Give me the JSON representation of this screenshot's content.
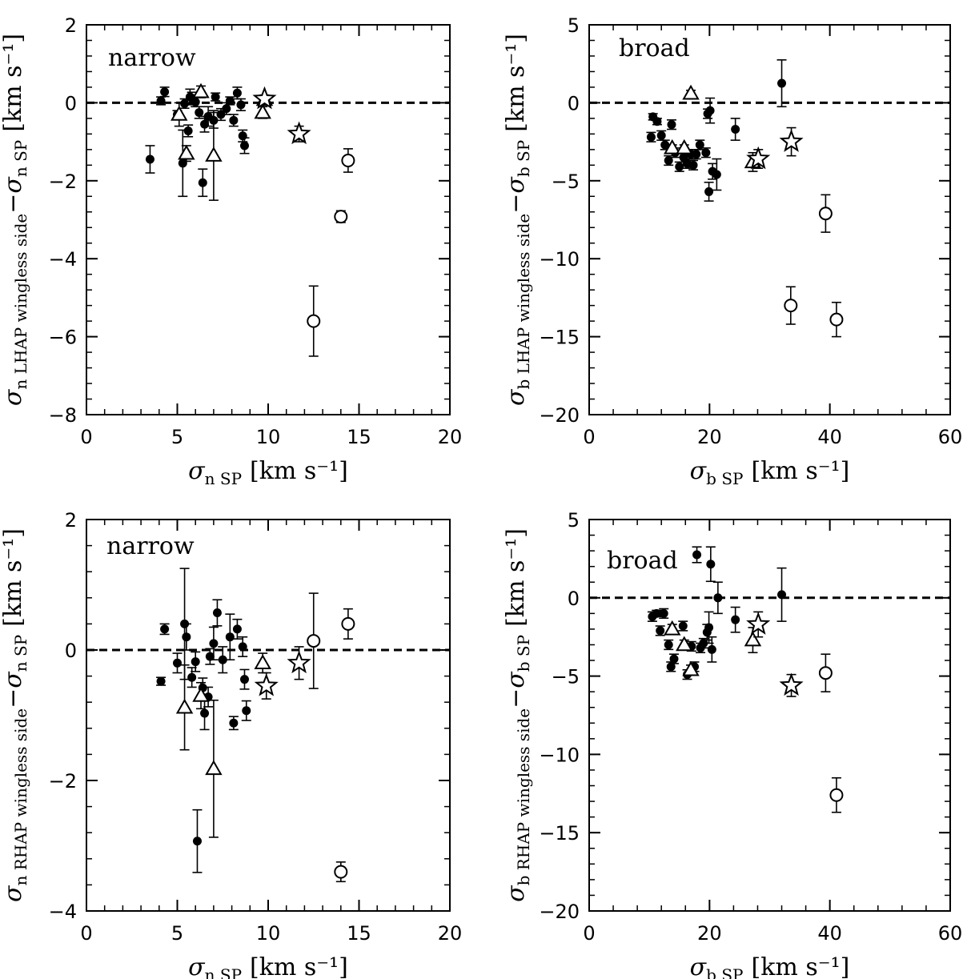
{
  "chart_data": [
    {
      "type": "scatter",
      "panel": "top-left",
      "label": "narrow",
      "xlabel": {
        "main": "σ",
        "sub": "n SP",
        "unit": "[km s⁻¹]"
      },
      "ylabel": {
        "main": "σ",
        "sub": "n LHAP wingless side",
        "minus": "−σ",
        "sub2": "n SP",
        "unit": "[km s⁻¹]"
      },
      "xlim": [
        0,
        20
      ],
      "ylim": [
        -8,
        2
      ],
      "xticks": [
        0,
        5,
        10,
        15,
        20
      ],
      "xtick_labels": [
        "0",
        "5",
        "10",
        "15",
        "20"
      ],
      "yticks": [
        -8,
        -6,
        -4,
        -2,
        0,
        2
      ],
      "ytick_labels": [
        "−8",
        "−6",
        "−4",
        "−2",
        "0",
        "2"
      ],
      "reference_line": 0,
      "series": [
        {
          "name": "filled circles",
          "marker": "filled-circle",
          "points": [
            {
              "x": 3.5,
              "y": -1.45,
              "err": 0.35
            },
            {
              "x": 4.1,
              "y": 0.05,
              "err": 0.1
            },
            {
              "x": 4.3,
              "y": 0.28,
              "err": 0.12
            },
            {
              "x": 5.0,
              "y": -0.3,
              "err": 0.1
            },
            {
              "x": 5.3,
              "y": -1.55,
              "err": 0.85
            },
            {
              "x": 5.4,
              "y": -0.02,
              "err": 0.12
            },
            {
              "x": 5.6,
              "y": -0.72,
              "err": 0.15
            },
            {
              "x": 5.7,
              "y": 0.15,
              "err": 0.2
            },
            {
              "x": 5.8,
              "y": 0.12,
              "err": 0.15
            },
            {
              "x": 6.0,
              "y": 0.02,
              "err": 0.12
            },
            {
              "x": 6.2,
              "y": -0.25,
              "err": 0.15
            },
            {
              "x": 6.4,
              "y": -2.05,
              "err": 0.35
            },
            {
              "x": 6.5,
              "y": -0.55,
              "err": 0.2
            },
            {
              "x": 6.7,
              "y": -0.35,
              "err": 0.25
            },
            {
              "x": 7.0,
              "y": -0.45,
              "err": 0.2
            },
            {
              "x": 7.1,
              "y": 0.15,
              "err": 0.1
            },
            {
              "x": 7.4,
              "y": -0.3,
              "err": 0.15
            },
            {
              "x": 7.7,
              "y": -0.15,
              "err": 0.15
            },
            {
              "x": 7.9,
              "y": 0.05,
              "err": 0.1
            },
            {
              "x": 8.1,
              "y": -0.45,
              "err": 0.15
            },
            {
              "x": 8.3,
              "y": 0.25,
              "err": 0.15
            },
            {
              "x": 8.5,
              "y": -0.05,
              "err": 0.15
            },
            {
              "x": 8.6,
              "y": -0.85,
              "err": 0.15
            },
            {
              "x": 8.7,
              "y": -1.1,
              "err": 0.2
            }
          ]
        },
        {
          "name": "open triangles",
          "marker": "open-triangle",
          "points": [
            {
              "x": 5.1,
              "y": -0.3,
              "err": 0.3
            },
            {
              "x": 5.5,
              "y": -1.3,
              "err": 0.2
            },
            {
              "x": 6.3,
              "y": 0.28,
              "err": 0.15
            },
            {
              "x": 7.0,
              "y": -1.35,
              "err": 1.15
            },
            {
              "x": 9.7,
              "y": -0.25,
              "err": 0.15
            },
            {
              "x": 9.8,
              "y": 0.08,
              "err": 0.1
            }
          ]
        },
        {
          "name": "open stars",
          "marker": "open-star",
          "points": [
            {
              "x": 9.8,
              "y": 0.1,
              "err": 0.1
            },
            {
              "x": 11.7,
              "y": -0.8,
              "err": 0.2
            }
          ]
        },
        {
          "name": "open circles",
          "marker": "open-circle",
          "points": [
            {
              "x": 12.5,
              "y": -5.6,
              "err": 0.9
            },
            {
              "x": 14.0,
              "y": -2.92,
              "err": 0.15
            },
            {
              "x": 14.4,
              "y": -1.48,
              "err": 0.3
            }
          ]
        }
      ]
    },
    {
      "type": "scatter",
      "panel": "top-right",
      "label": "broad",
      "xlabel": {
        "main": "σ",
        "sub": "b SP",
        "unit": "[km s⁻¹]"
      },
      "ylabel": {
        "main": "σ",
        "sub": "b LHAP wingless side",
        "minus": "−σ",
        "sub2": "b SP",
        "unit": "[km s⁻¹]"
      },
      "xlim": [
        0,
        60
      ],
      "ylim": [
        -20,
        5
      ],
      "xticks": [
        0,
        20,
        40,
        60
      ],
      "xtick_labels": [
        "0",
        "20",
        "40",
        "60"
      ],
      "yticks": [
        -20,
        -15,
        -10,
        -5,
        0,
        5
      ],
      "ytick_labels": [
        "−20",
        "−15",
        "−10",
        "−5",
        "0",
        "5"
      ],
      "reference_line": 0,
      "series": [
        {
          "name": "filled circles",
          "marker": "filled-circle",
          "points": [
            {
              "x": 10.3,
              "y": -2.2,
              "err": 0.3
            },
            {
              "x": 10.6,
              "y": -0.9,
              "err": 0.2
            },
            {
              "x": 11.3,
              "y": -1.2,
              "err": 0.2
            },
            {
              "x": 12.0,
              "y": -2.1,
              "err": 0.3
            },
            {
              "x": 12.6,
              "y": -2.7,
              "err": 0.3
            },
            {
              "x": 13.2,
              "y": -3.7,
              "err": 0.3
            },
            {
              "x": 13.7,
              "y": -1.4,
              "err": 0.3
            },
            {
              "x": 14.3,
              "y": -3.2,
              "err": 0.3
            },
            {
              "x": 15.0,
              "y": -4.1,
              "err": 0.3
            },
            {
              "x": 15.7,
              "y": -3.5,
              "err": 0.3
            },
            {
              "x": 16.3,
              "y": -3.9,
              "err": 0.3
            },
            {
              "x": 16.9,
              "y": -3.3,
              "err": 0.3
            },
            {
              "x": 17.3,
              "y": -4.0,
              "err": 0.3
            },
            {
              "x": 17.8,
              "y": -3.3,
              "err": 0.3
            },
            {
              "x": 18.4,
              "y": -2.7,
              "err": 0.3
            },
            {
              "x": 19.4,
              "y": -3.2,
              "err": 0.3
            },
            {
              "x": 19.7,
              "y": -0.7,
              "err": 0.3
            },
            {
              "x": 19.9,
              "y": -5.7,
              "err": 0.6
            },
            {
              "x": 20.1,
              "y": -0.5,
              "err": 0.8
            },
            {
              "x": 20.5,
              "y": -4.4,
              "err": 0.5
            },
            {
              "x": 21.2,
              "y": -4.6,
              "err": 1.0
            },
            {
              "x": 24.3,
              "y": -1.7,
              "err": 0.7
            },
            {
              "x": 32.0,
              "y": 1.25,
              "err": 1.5
            }
          ]
        },
        {
          "name": "open triangles",
          "marker": "open-triangle",
          "points": [
            {
              "x": 13.8,
              "y": -2.9,
              "err": 0.2
            },
            {
              "x": 15.8,
              "y": -2.9,
              "err": 0.2
            },
            {
              "x": 16.9,
              "y": 0.6,
              "err": 0.2
            },
            {
              "x": 27.2,
              "y": -3.8,
              "err": 0.6
            }
          ]
        },
        {
          "name": "open stars",
          "marker": "open-star",
          "points": [
            {
              "x": 28.1,
              "y": -3.6,
              "err": 0.6
            },
            {
              "x": 33.6,
              "y": -2.5,
              "err": 0.9
            }
          ]
        },
        {
          "name": "open circles",
          "marker": "open-circle",
          "points": [
            {
              "x": 33.5,
              "y": -13.0,
              "err": 1.2
            },
            {
              "x": 39.3,
              "y": -7.1,
              "err": 1.2
            },
            {
              "x": 41.1,
              "y": -13.9,
              "err": 1.1
            }
          ]
        }
      ]
    },
    {
      "type": "scatter",
      "panel": "bottom-left",
      "label": "narrow",
      "xlabel": {
        "main": "σ",
        "sub": "n SP",
        "unit": "[km s⁻¹]"
      },
      "ylabel": {
        "main": "σ",
        "sub": "n RHAP wingless side",
        "minus": "−σ",
        "sub2": "n SP",
        "unit": "[km s⁻¹]"
      },
      "xlim": [
        0,
        20
      ],
      "ylim": [
        -4,
        2
      ],
      "xticks": [
        0,
        5,
        10,
        15,
        20
      ],
      "xtick_labels": [
        "0",
        "5",
        "10",
        "15",
        "20"
      ],
      "yticks": [
        -4,
        -2,
        0,
        2
      ],
      "ytick_labels": [
        "−4",
        "−2",
        "0",
        "2"
      ],
      "reference_line": 0,
      "series": [
        {
          "name": "filled circles",
          "marker": "filled-circle",
          "points": [
            {
              "x": 4.1,
              "y": -0.48,
              "err": 0.06
            },
            {
              "x": 4.3,
              "y": 0.32,
              "err": 0.08
            },
            {
              "x": 5.0,
              "y": -0.2,
              "err": 0.15
            },
            {
              "x": 5.4,
              "y": 0.4,
              "err": 0.85
            },
            {
              "x": 5.5,
              "y": 0.2,
              "err": 0.2
            },
            {
              "x": 5.8,
              "y": -0.42,
              "err": 0.15
            },
            {
              "x": 6.0,
              "y": -0.18,
              "err": 0.15
            },
            {
              "x": 6.1,
              "y": -2.93,
              "err": 0.48
            },
            {
              "x": 6.4,
              "y": -0.58,
              "err": 0.15
            },
            {
              "x": 6.5,
              "y": -0.97,
              "err": 0.25
            },
            {
              "x": 6.7,
              "y": -0.72,
              "err": 0.15
            },
            {
              "x": 6.8,
              "y": -0.1,
              "err": 0.12
            },
            {
              "x": 7.0,
              "y": 0.1,
              "err": 0.25
            },
            {
              "x": 7.2,
              "y": 0.57,
              "err": 0.2
            },
            {
              "x": 7.5,
              "y": -0.15,
              "err": 0.2
            },
            {
              "x": 7.9,
              "y": 0.2,
              "err": 0.35
            },
            {
              "x": 8.1,
              "y": -1.12,
              "err": 0.1
            },
            {
              "x": 8.3,
              "y": 0.32,
              "err": 0.15
            },
            {
              "x": 8.6,
              "y": 0.05,
              "err": 0.15
            },
            {
              "x": 8.7,
              "y": -0.45,
              "err": 0.15
            },
            {
              "x": 8.8,
              "y": -0.93,
              "err": 0.15
            }
          ]
        },
        {
          "name": "open triangles",
          "marker": "open-triangle",
          "points": [
            {
              "x": 5.4,
              "y": -0.88,
              "err": 0.65
            },
            {
              "x": 6.3,
              "y": -0.7,
              "err": 0.2
            },
            {
              "x": 7.0,
              "y": -1.82,
              "err": 1.05
            },
            {
              "x": 9.7,
              "y": -0.2,
              "err": 0.15
            }
          ]
        },
        {
          "name": "open stars",
          "marker": "open-star",
          "points": [
            {
              "x": 9.9,
              "y": -0.55,
              "err": 0.2
            },
            {
              "x": 11.7,
              "y": -0.2,
              "err": 0.25
            }
          ]
        },
        {
          "name": "open circles",
          "marker": "open-circle",
          "points": [
            {
              "x": 12.5,
              "y": 0.14,
              "err": 0.73
            },
            {
              "x": 14.0,
              "y": -3.4,
              "err": 0.15
            },
            {
              "x": 14.4,
              "y": 0.4,
              "err": 0.23
            }
          ]
        }
      ]
    },
    {
      "type": "scatter",
      "panel": "bottom-right",
      "label": "broad",
      "xlabel": {
        "main": "σ",
        "sub": "b SP",
        "unit": "[km s⁻¹]"
      },
      "ylabel": {
        "main": "σ",
        "sub": "b RHAP wingless side",
        "minus": "−σ",
        "sub2": "b SP",
        "unit": "[km s⁻¹]"
      },
      "xlim": [
        0,
        60
      ],
      "ylim": [
        -20,
        5
      ],
      "xticks": [
        0,
        20,
        40,
        60
      ],
      "xtick_labels": [
        "0",
        "20",
        "40",
        "60"
      ],
      "yticks": [
        -20,
        -15,
        -10,
        -5,
        0,
        5
      ],
      "ytick_labels": [
        "−20",
        "−15",
        "−10",
        "−5",
        "0",
        "5"
      ],
      "reference_line": 0,
      "series": [
        {
          "name": "filled circles",
          "marker": "filled-circle",
          "points": [
            {
              "x": 10.5,
              "y": -1.2,
              "err": 0.3
            },
            {
              "x": 11.2,
              "y": -1.0,
              "err": 0.2
            },
            {
              "x": 11.8,
              "y": -2.1,
              "err": 0.3
            },
            {
              "x": 12.4,
              "y": -1.0,
              "err": 0.3
            },
            {
              "x": 13.2,
              "y": -3.0,
              "err": 0.3
            },
            {
              "x": 13.6,
              "y": -4.4,
              "err": 0.3
            },
            {
              "x": 14.1,
              "y": -3.9,
              "err": 0.3
            },
            {
              "x": 15.6,
              "y": -1.8,
              "err": 0.3
            },
            {
              "x": 16.3,
              "y": -4.9,
              "err": 0.3
            },
            {
              "x": 17.0,
              "y": -3.1,
              "err": 0.3
            },
            {
              "x": 17.5,
              "y": -4.4,
              "err": 0.3
            },
            {
              "x": 17.9,
              "y": 2.75,
              "err": 0.5
            },
            {
              "x": 18.5,
              "y": -3.2,
              "err": 0.3
            },
            {
              "x": 19.0,
              "y": -2.9,
              "err": 0.3
            },
            {
              "x": 19.6,
              "y": -2.2,
              "err": 0.5
            },
            {
              "x": 19.9,
              "y": -1.9,
              "err": 1.0
            },
            {
              "x": 20.2,
              "y": 2.15,
              "err": 1.1
            },
            {
              "x": 20.4,
              "y": -3.3,
              "err": 0.8
            },
            {
              "x": 21.4,
              "y": 0.0,
              "err": 1.0
            },
            {
              "x": 24.3,
              "y": -1.4,
              "err": 0.8
            },
            {
              "x": 32.0,
              "y": 0.2,
              "err": 1.7
            }
          ]
        },
        {
          "name": "open triangles",
          "marker": "open-triangle",
          "points": [
            {
              "x": 13.8,
              "y": -2.0,
              "err": 0.3
            },
            {
              "x": 15.8,
              "y": -3.0,
              "err": 0.3
            },
            {
              "x": 16.9,
              "y": -4.6,
              "err": 0.3
            },
            {
              "x": 27.2,
              "y": -2.7,
              "err": 0.8
            }
          ]
        },
        {
          "name": "open stars",
          "marker": "open-star",
          "points": [
            {
              "x": 28.1,
              "y": -1.7,
              "err": 0.8
            },
            {
              "x": 33.6,
              "y": -5.6,
              "err": 0.7
            }
          ]
        },
        {
          "name": "open circles",
          "marker": "open-circle",
          "points": [
            {
              "x": 39.3,
              "y": -4.8,
              "err": 1.2
            },
            {
              "x": 41.1,
              "y": -12.6,
              "err": 1.1
            }
          ]
        }
      ]
    }
  ]
}
